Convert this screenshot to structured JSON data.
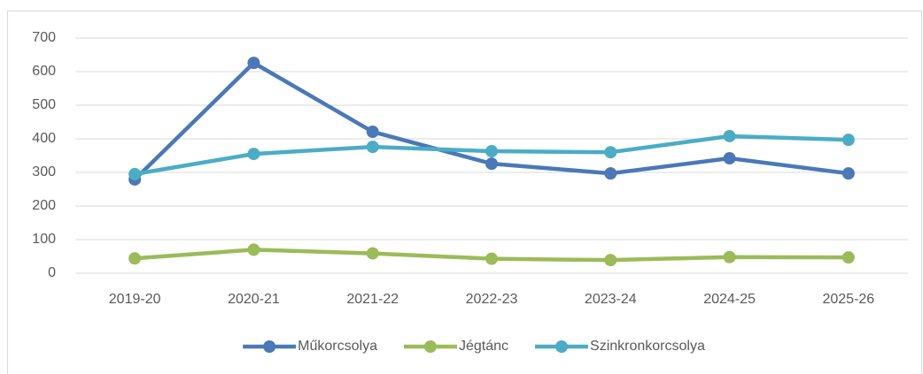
{
  "chart_data": {
    "type": "line",
    "categories": [
      "2019-20",
      "2020-21",
      "2021-22",
      "2022-23",
      "2023-24",
      "2024-25",
      "2025-26"
    ],
    "series": [
      {
        "name": "Műkorcsolya",
        "color": "#4a78b8",
        "values": [
          279,
          626,
          421,
          326,
          297,
          342,
          297
        ]
      },
      {
        "name": "Jégtánc",
        "color": "#9bbb59",
        "values": [
          44,
          70,
          59,
          43,
          39,
          48,
          47
        ]
      },
      {
        "name": "Szinkronkorcsolya",
        "color": "#4bacc6",
        "values": [
          295,
          355,
          376,
          363,
          360,
          408,
          397
        ]
      }
    ],
    "ylim": [
      0,
      700
    ],
    "yticks": [
      0,
      100,
      200,
      300,
      400,
      500,
      600,
      700
    ],
    "grid": true,
    "legend": "bottom"
  }
}
